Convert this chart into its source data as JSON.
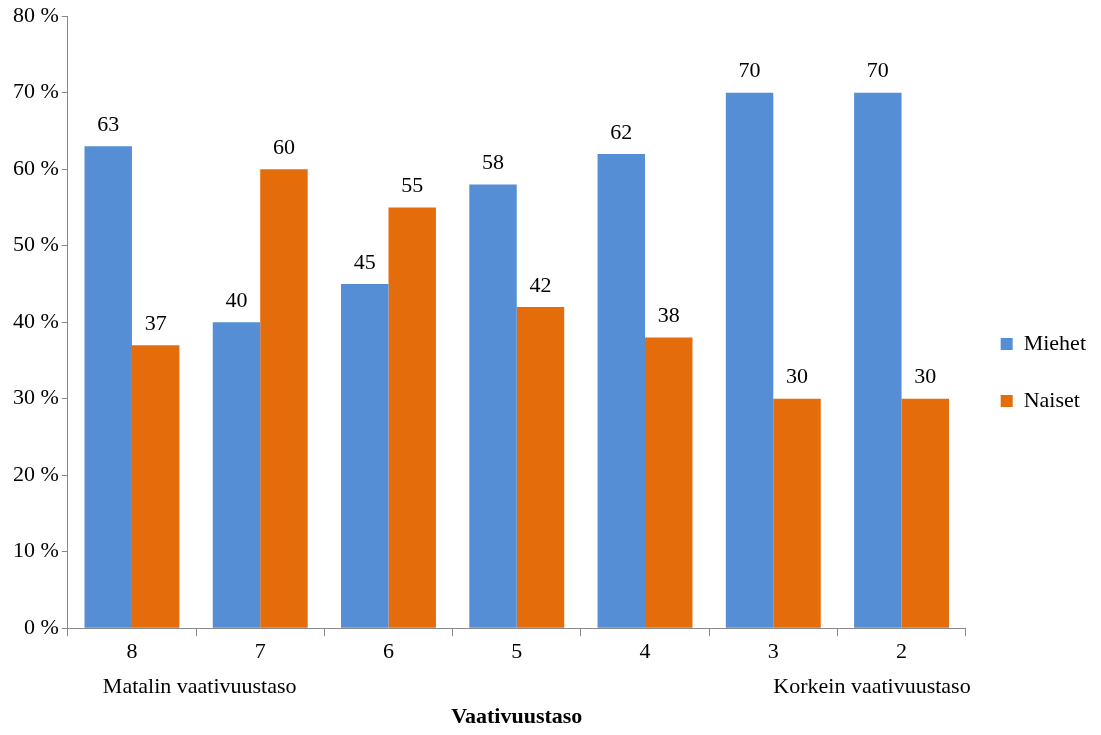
{
  "chart_data": {
    "type": "bar",
    "xlabel": "Vaativuustaso",
    "categories": [
      "8",
      "7",
      "6",
      "5",
      "4",
      "3",
      "2"
    ],
    "series": [
      {
        "name": "Miehet",
        "color": "#558ed5",
        "values": [
          63,
          40,
          45,
          58,
          62,
          70,
          70
        ]
      },
      {
        "name": "Naiset",
        "color": "#e46c0a",
        "values": [
          37,
          60,
          55,
          42,
          38,
          30,
          30
        ]
      }
    ],
    "ylim": [
      0,
      80
    ],
    "yticks": [
      {
        "value": 0,
        "label": "0 %"
      },
      {
        "value": 10,
        "label": "10 %"
      },
      {
        "value": 20,
        "label": "20 %"
      },
      {
        "value": 30,
        "label": "30 %"
      },
      {
        "value": 40,
        "label": "40 %"
      },
      {
        "value": 50,
        "label": "50 %"
      },
      {
        "value": 60,
        "label": "60 %"
      },
      {
        "value": 70,
        "label": "70 %"
      },
      {
        "value": 80,
        "label": "80 %"
      }
    ],
    "annotations": [
      "Matalin vaativuustaso",
      "Korkein vaativuustaso"
    ],
    "data_labels": true,
    "grid": false,
    "legend": "right"
  }
}
